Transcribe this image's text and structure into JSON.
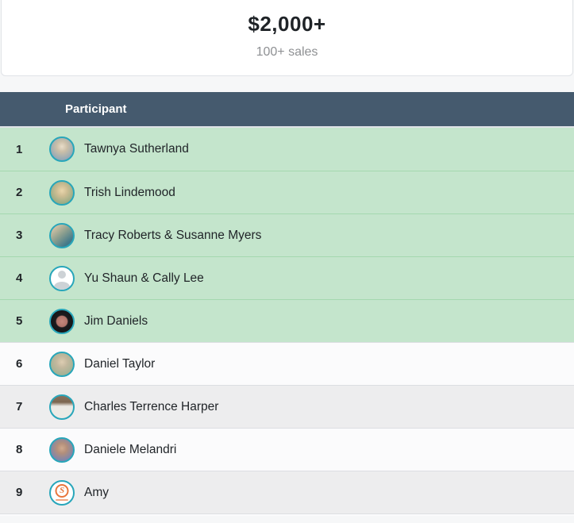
{
  "summary_card": {
    "amount": "$2,000+",
    "subtitle": "100+ sales"
  },
  "table": {
    "header": {
      "participant": "Participant"
    },
    "rows": [
      {
        "rank": "1",
        "name": "Tawnya Sutherland",
        "highlighted": true,
        "avatar": "photo",
        "avatar_css": "background:radial-gradient(circle at 50% 38%, #e8ddc9 0%, #cbbfa8 30%, #93a7b6 75%)"
      },
      {
        "rank": "2",
        "name": "Trish Lindemood",
        "highlighted": true,
        "avatar": "photo",
        "avatar_css": "background:radial-gradient(circle at 50% 40%, #e9d6ac 0%, #cdbd93 32%, #97ab85 75%)"
      },
      {
        "rank": "3",
        "name": "Tracy Roberts & Susanne Myers",
        "highlighted": true,
        "avatar": "photo",
        "avatar_css": "background:linear-gradient(140deg, #dcc6a6 10%, #8fa08f 45%, #42798a 80%)"
      },
      {
        "rank": "4",
        "name": "Yu Shaun & Cally Lee",
        "highlighted": true,
        "avatar": "placeholder-person",
        "avatar_css": "background:#ffffff"
      },
      {
        "rank": "5",
        "name": "Jim Daniels",
        "highlighted": true,
        "avatar": "photo",
        "avatar_css": "background:radial-gradient(circle, #c4887c 0%, #b1746a 34%, #1c1c1e 40%, #141416 78%, #ffffff 84%)"
      },
      {
        "rank": "6",
        "name": "Daniel Taylor",
        "highlighted": false,
        "avatar": "photo",
        "avatar_css": "background:radial-gradient(circle at 50% 40%, #ddcdb2 0%, #c3b89e 32%, #a2b194 75%)"
      },
      {
        "rank": "7",
        "name": "Charles Terrence Harper",
        "highlighted": false,
        "avatar": "photo",
        "avatar_css": "background:linear-gradient(180deg, #87705b 0%, #7d6751 28%, #eceae5 46%)"
      },
      {
        "rank": "8",
        "name": "Daniele Melandri",
        "highlighted": false,
        "avatar": "photo",
        "avatar_css": "background:radial-gradient(circle at 50% 42%, #cfa98e 0%, #b38f7b 30%, #7e85ac 72%)"
      },
      {
        "rank": "9",
        "name": "Amy",
        "highlighted": false,
        "avatar": "logo",
        "avatar_css": "background:#ffffff",
        "logo_letter": "S"
      }
    ]
  },
  "colors": {
    "header_bg": "#455a6e",
    "highlight_row_bg": "#c4e5cc",
    "highlight_row_border": "#a4d8af",
    "stripe_row_bg": "#ededee",
    "white_row_bg": "#fbfbfc",
    "avatar_ring": "#28a6ba",
    "logo_accent": "#e8763d",
    "card_border": "#e0e3e7",
    "page_bg": "#f6f7f8",
    "amount_text": "#1f2327",
    "subtitle_text": "#8e9093"
  }
}
